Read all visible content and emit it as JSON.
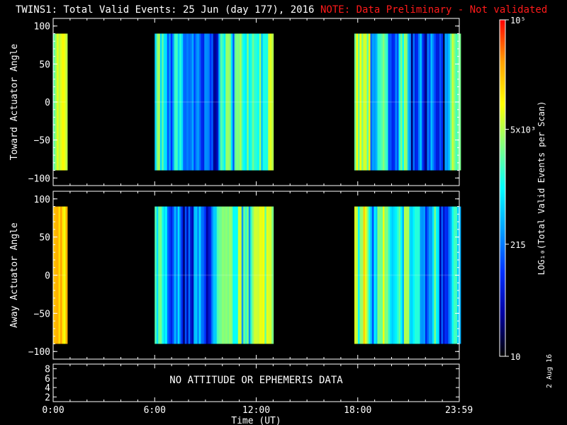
{
  "title": {
    "main": "TWINS1: Total Valid Events: 25 Jun (day 177), 2016",
    "note": "NOTE: Data Preliminary - Not validated",
    "note_color": "#ff1a1a"
  },
  "stamp": "2 Aug 16",
  "chart_data": [
    {
      "type": "heatmap",
      "name": "toward",
      "ylabel": "Toward Actuator Angle",
      "xlim": [
        0,
        24
      ],
      "ylim": [
        -110,
        110
      ],
      "yticks": [
        100,
        50,
        0,
        -50,
        -100
      ],
      "ytick_labels": [
        "100",
        "50",
        "0",
        "−50",
        "−100"
      ],
      "data_ylim": [
        -90,
        90
      ],
      "segments": [
        {
          "start": 0.0,
          "end": 0.75,
          "profile": "toward_a"
        },
        {
          "start": 6.0,
          "end": 13.0,
          "profile": "toward_b"
        },
        {
          "start": 17.8,
          "end": 24.0,
          "profile": "toward_c"
        }
      ]
    },
    {
      "type": "heatmap",
      "name": "away",
      "ylabel": "Away Actuator Angle",
      "xlim": [
        0,
        24
      ],
      "ylim": [
        -110,
        110
      ],
      "yticks": [
        100,
        50,
        0,
        -50,
        -100
      ],
      "ytick_labels": [
        "100",
        "50",
        "0",
        "−50",
        "−100"
      ],
      "data_ylim": [
        -90,
        90
      ],
      "segments": [
        {
          "start": 0.0,
          "end": 0.75,
          "profile": "away_a"
        },
        {
          "start": 6.0,
          "end": 13.0,
          "profile": "away_b"
        },
        {
          "start": 17.8,
          "end": 24.0,
          "profile": "away_c"
        }
      ]
    },
    {
      "type": "line",
      "name": "ephemeris",
      "xlim": [
        0,
        24
      ],
      "yticks": [
        8,
        6,
        4,
        2
      ],
      "ytick_labels": [
        "8",
        "6",
        "4",
        "2"
      ],
      "message": "NO ATTITUDE OR EPHEMERIS DATA",
      "xlabel": "Time (UT)",
      "xticks": [
        0,
        6,
        12,
        18,
        23.983
      ],
      "xtick_labels": [
        "0:00",
        "6:00",
        "12:00",
        "18:00",
        "23:59"
      ]
    }
  ],
  "colorbar": {
    "label": "LOG₁₀(Total Valid Events per Scan)",
    "scale": "log",
    "range": [
      10,
      100000
    ],
    "ticks": [
      {
        "value": 100000,
        "label": "10⁵"
      },
      {
        "value": 5000,
        "label": "5x10³"
      },
      {
        "value": 215,
        "label": "215"
      },
      {
        "value": 10,
        "label": "10"
      }
    ],
    "colors": [
      "#000000",
      "#0000a0",
      "#0030ff",
      "#00a0ff",
      "#00ffff",
      "#80ff80",
      "#ffff00",
      "#ffa000",
      "#ff0000"
    ]
  }
}
